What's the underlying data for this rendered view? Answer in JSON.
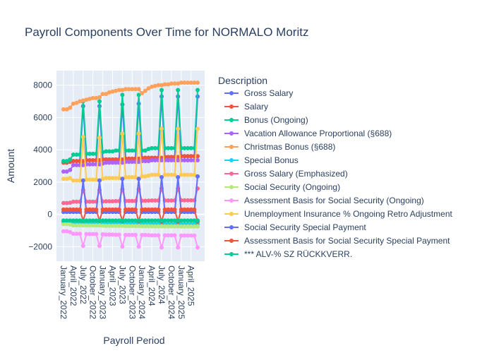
{
  "chart_data": {
    "type": "line",
    "title": "Payroll Components Over Time for NORMALO Moritz",
    "xlabel": "Payroll Period",
    "ylabel": "Amount",
    "ylim": [
      -2900,
      8900
    ],
    "y_ticks": [
      -2000,
      0,
      2000,
      4000,
      6000,
      8000
    ],
    "x_tick_labels": [
      "January_2022",
      "April_2022",
      "July_2022",
      "October_2022",
      "January_2023",
      "April_2023",
      "July_2023",
      "October_2023",
      "January_2024",
      "April_2024",
      "July_2024",
      "October_2024",
      "January_2025",
      "April_2025"
    ],
    "periods": [
      "January_2022",
      "February_2022",
      "March_2022",
      "April_2022",
      "May_2022",
      "June_2022",
      "July_2022",
      "August_2022",
      "September_2022",
      "October_2022",
      "November_2022",
      "December_2022",
      "January_2023",
      "February_2023",
      "March_2023",
      "April_2023",
      "May_2023",
      "June_2023",
      "July_2023",
      "August_2023",
      "September_2023",
      "October_2023",
      "November_2023",
      "December_2023",
      "January_2024",
      "February_2024",
      "March_2024",
      "April_2024",
      "May_2024",
      "June_2024",
      "July_2024",
      "August_2024",
      "September_2024",
      "October_2024",
      "November_2024",
      "December_2024",
      "January_2025",
      "February_2025",
      "March_2025",
      "April_2025",
      "May_2025",
      "June_2025"
    ],
    "legend_title": "Description",
    "legend_position": "right",
    "grid": true,
    "series": [
      {
        "name": "Gross Salary",
        "color": "#636efa",
        "values": [
          3200,
          3200,
          3250,
          3300,
          3300,
          3300,
          6700,
          3350,
          3350,
          3350,
          3350,
          6700,
          3400,
          3400,
          3400,
          3400,
          3400,
          3400,
          6800,
          3450,
          3450,
          3450,
          3450,
          6850,
          3500,
          3500,
          3500,
          3500,
          3500,
          3500,
          7300,
          3550,
          3550,
          3550,
          3550,
          7300,
          3600,
          3600,
          3600,
          3600,
          3600,
          7300
        ]
      },
      {
        "name": "Salary",
        "color": "#ef553b",
        "values": [
          3200,
          3200,
          3250,
          3300,
          3300,
          3300,
          3300,
          3350,
          3350,
          3350,
          3350,
          3350,
          3400,
          3400,
          3400,
          3400,
          3400,
          3400,
          3400,
          3450,
          3450,
          3450,
          3450,
          3450,
          3500,
          3500,
          3500,
          3500,
          3500,
          3500,
          3500,
          3550,
          3550,
          3550,
          3550,
          3550,
          3600,
          3600,
          3600,
          3600,
          3600,
          3600
        ]
      },
      {
        "name": "Bonus (Ongoing)",
        "color": "#00cc96",
        "values": [
          3300,
          3300,
          3400,
          3700,
          3700,
          3700,
          7000,
          3750,
          3750,
          3750,
          3750,
          7000,
          3850,
          3900,
          3900,
          3900,
          3950,
          3950,
          7400,
          3950,
          3950,
          3950,
          3950,
          7400,
          3950,
          3950,
          4050,
          4100,
          4100,
          4100,
          7700,
          4100,
          4100,
          4100,
          4100,
          7700,
          4100,
          4100,
          4100,
          4100,
          4100,
          7700
        ]
      },
      {
        "name": "Vacation Allowance Proportional (§688)",
        "color": "#ab63fa",
        "values": [
          2650,
          2650,
          2750,
          3050,
          3050,
          3050,
          3050,
          3100,
          3100,
          3100,
          3100,
          3100,
          3150,
          3200,
          3200,
          3200,
          3200,
          3200,
          3200,
          3250,
          3250,
          3250,
          3250,
          3250,
          3300,
          3300,
          3300,
          3350,
          3350,
          3350,
          3350,
          3350,
          3350,
          3350,
          3350,
          3350,
          3350,
          3350,
          3350,
          3350,
          3350,
          3350
        ]
      },
      {
        "name": "Christmas Bonus (§688)",
        "color": "#ffa15a",
        "values": [
          6500,
          6500,
          6600,
          6850,
          6900,
          7000,
          7050,
          7100,
          7150,
          7200,
          7200,
          7250,
          7450,
          7450,
          7550,
          7600,
          7650,
          7700,
          7700,
          7750,
          7750,
          7750,
          7750,
          7750,
          7500,
          7650,
          7800,
          7900,
          7950,
          8000,
          8000,
          8050,
          8050,
          8100,
          8100,
          8100,
          8150,
          8150,
          8150,
          8150,
          8150,
          8150
        ]
      },
      {
        "name": "Special Bonus",
        "color": "#19d3f3",
        "values": [
          -480,
          -480,
          -490,
          -540,
          -540,
          -540,
          -540,
          -550,
          -550,
          -550,
          -550,
          -550,
          -560,
          -560,
          -560,
          -560,
          -560,
          -560,
          -560,
          -570,
          -570,
          -570,
          -570,
          -570,
          -580,
          -580,
          -580,
          -590,
          -590,
          -590,
          -590,
          -590,
          -590,
          -590,
          -590,
          -590,
          -600,
          -600,
          -600,
          -600,
          -600,
          -600
        ]
      },
      {
        "name": "Gross Salary (Emphasized)",
        "color": "#ff6692",
        "values": [
          700,
          700,
          720,
          780,
          780,
          780,
          1500,
          790,
          790,
          790,
          790,
          1500,
          800,
          810,
          810,
          810,
          820,
          820,
          1550,
          830,
          830,
          830,
          830,
          1550,
          840,
          840,
          850,
          860,
          860,
          860,
          1600,
          860,
          860,
          860,
          860,
          1600,
          870,
          870,
          870,
          870,
          870,
          1600
        ]
      },
      {
        "name": "Social Security (Ongoing)",
        "color": "#b6e880",
        "values": [
          -600,
          -600,
          -620,
          -680,
          -680,
          -680,
          -680,
          -690,
          -690,
          -690,
          -690,
          -690,
          -700,
          -710,
          -710,
          -710,
          -710,
          -710,
          -710,
          -720,
          -720,
          -720,
          -720,
          -720,
          -730,
          -730,
          -730,
          -740,
          -740,
          -740,
          -740,
          -740,
          -740,
          -740,
          -740,
          -740,
          -750,
          -750,
          -750,
          -750,
          -750,
          -750
        ]
      },
      {
        "name": "Assessment Basis for Social Security (Ongoing)",
        "color": "#ff97ff",
        "values": [
          -1050,
          -1050,
          -1100,
          -1200,
          -1200,
          -1200,
          -1950,
          -1220,
          -1220,
          -1220,
          -1220,
          -1950,
          -1230,
          -1250,
          -1250,
          -1250,
          -1260,
          -1260,
          -2000,
          -1270,
          -1270,
          -1270,
          -1270,
          -2000,
          -1280,
          -1280,
          -1290,
          -1300,
          -1300,
          -1300,
          -2050,
          -1300,
          -1300,
          -1300,
          -1300,
          -2050,
          -1310,
          -1310,
          -1310,
          -1310,
          -1310,
          -2050
        ]
      },
      {
        "name": "Unemployment Insurance % Ongoing Retro Adjustment",
        "color": "#fecb52",
        "values": [
          2200,
          2200,
          2250,
          2100,
          2100,
          2100,
          4800,
          2150,
          2150,
          2150,
          2150,
          4750,
          2200,
          2250,
          2250,
          2250,
          2250,
          2250,
          5000,
          2300,
          2300,
          2300,
          2300,
          5000,
          2350,
          2350,
          2400,
          2450,
          2450,
          2450,
          5300,
          2450,
          2450,
          2450,
          2450,
          5300,
          2450,
          2450,
          2450,
          2450,
          2450,
          5300
        ]
      },
      {
        "name": "Social Security Special Payment",
        "color": "#636efa",
        "values": [
          150,
          150,
          150,
          150,
          150,
          150,
          2100,
          150,
          150,
          150,
          150,
          2100,
          150,
          150,
          150,
          150,
          150,
          150,
          2200,
          150,
          150,
          150,
          150,
          2200,
          150,
          150,
          150,
          150,
          150,
          150,
          2300,
          150,
          150,
          150,
          150,
          2300,
          150,
          150,
          150,
          150,
          150,
          2350
        ]
      },
      {
        "name": "Assessment Basis for Social Security Special Payment",
        "color": "#ef553b",
        "values": [
          300,
          300,
          300,
          300,
          300,
          300,
          -400,
          300,
          300,
          300,
          300,
          -400,
          300,
          300,
          300,
          300,
          300,
          300,
          -420,
          300,
          300,
          300,
          300,
          -420,
          300,
          300,
          300,
          300,
          300,
          300,
          -450,
          300,
          300,
          300,
          300,
          -450,
          300,
          300,
          300,
          300,
          300,
          -450
        ]
      },
      {
        "name": "*** ALV-% SZ RÜCKKVERR.",
        "color": "#00cc96",
        "values": [
          -380,
          -380,
          -380,
          -380,
          -380,
          -380,
          -380,
          -380,
          -380,
          -380,
          -380,
          -380,
          -380,
          -380,
          -380,
          -380,
          -380,
          -380,
          -380,
          -380,
          -380,
          -380,
          -380,
          -380,
          -380,
          -380,
          -380,
          -380,
          -380,
          -380,
          -380,
          -380,
          -380,
          -380,
          -380,
          -380,
          -380,
          -380,
          -380,
          -380,
          -380,
          -380
        ]
      }
    ]
  }
}
